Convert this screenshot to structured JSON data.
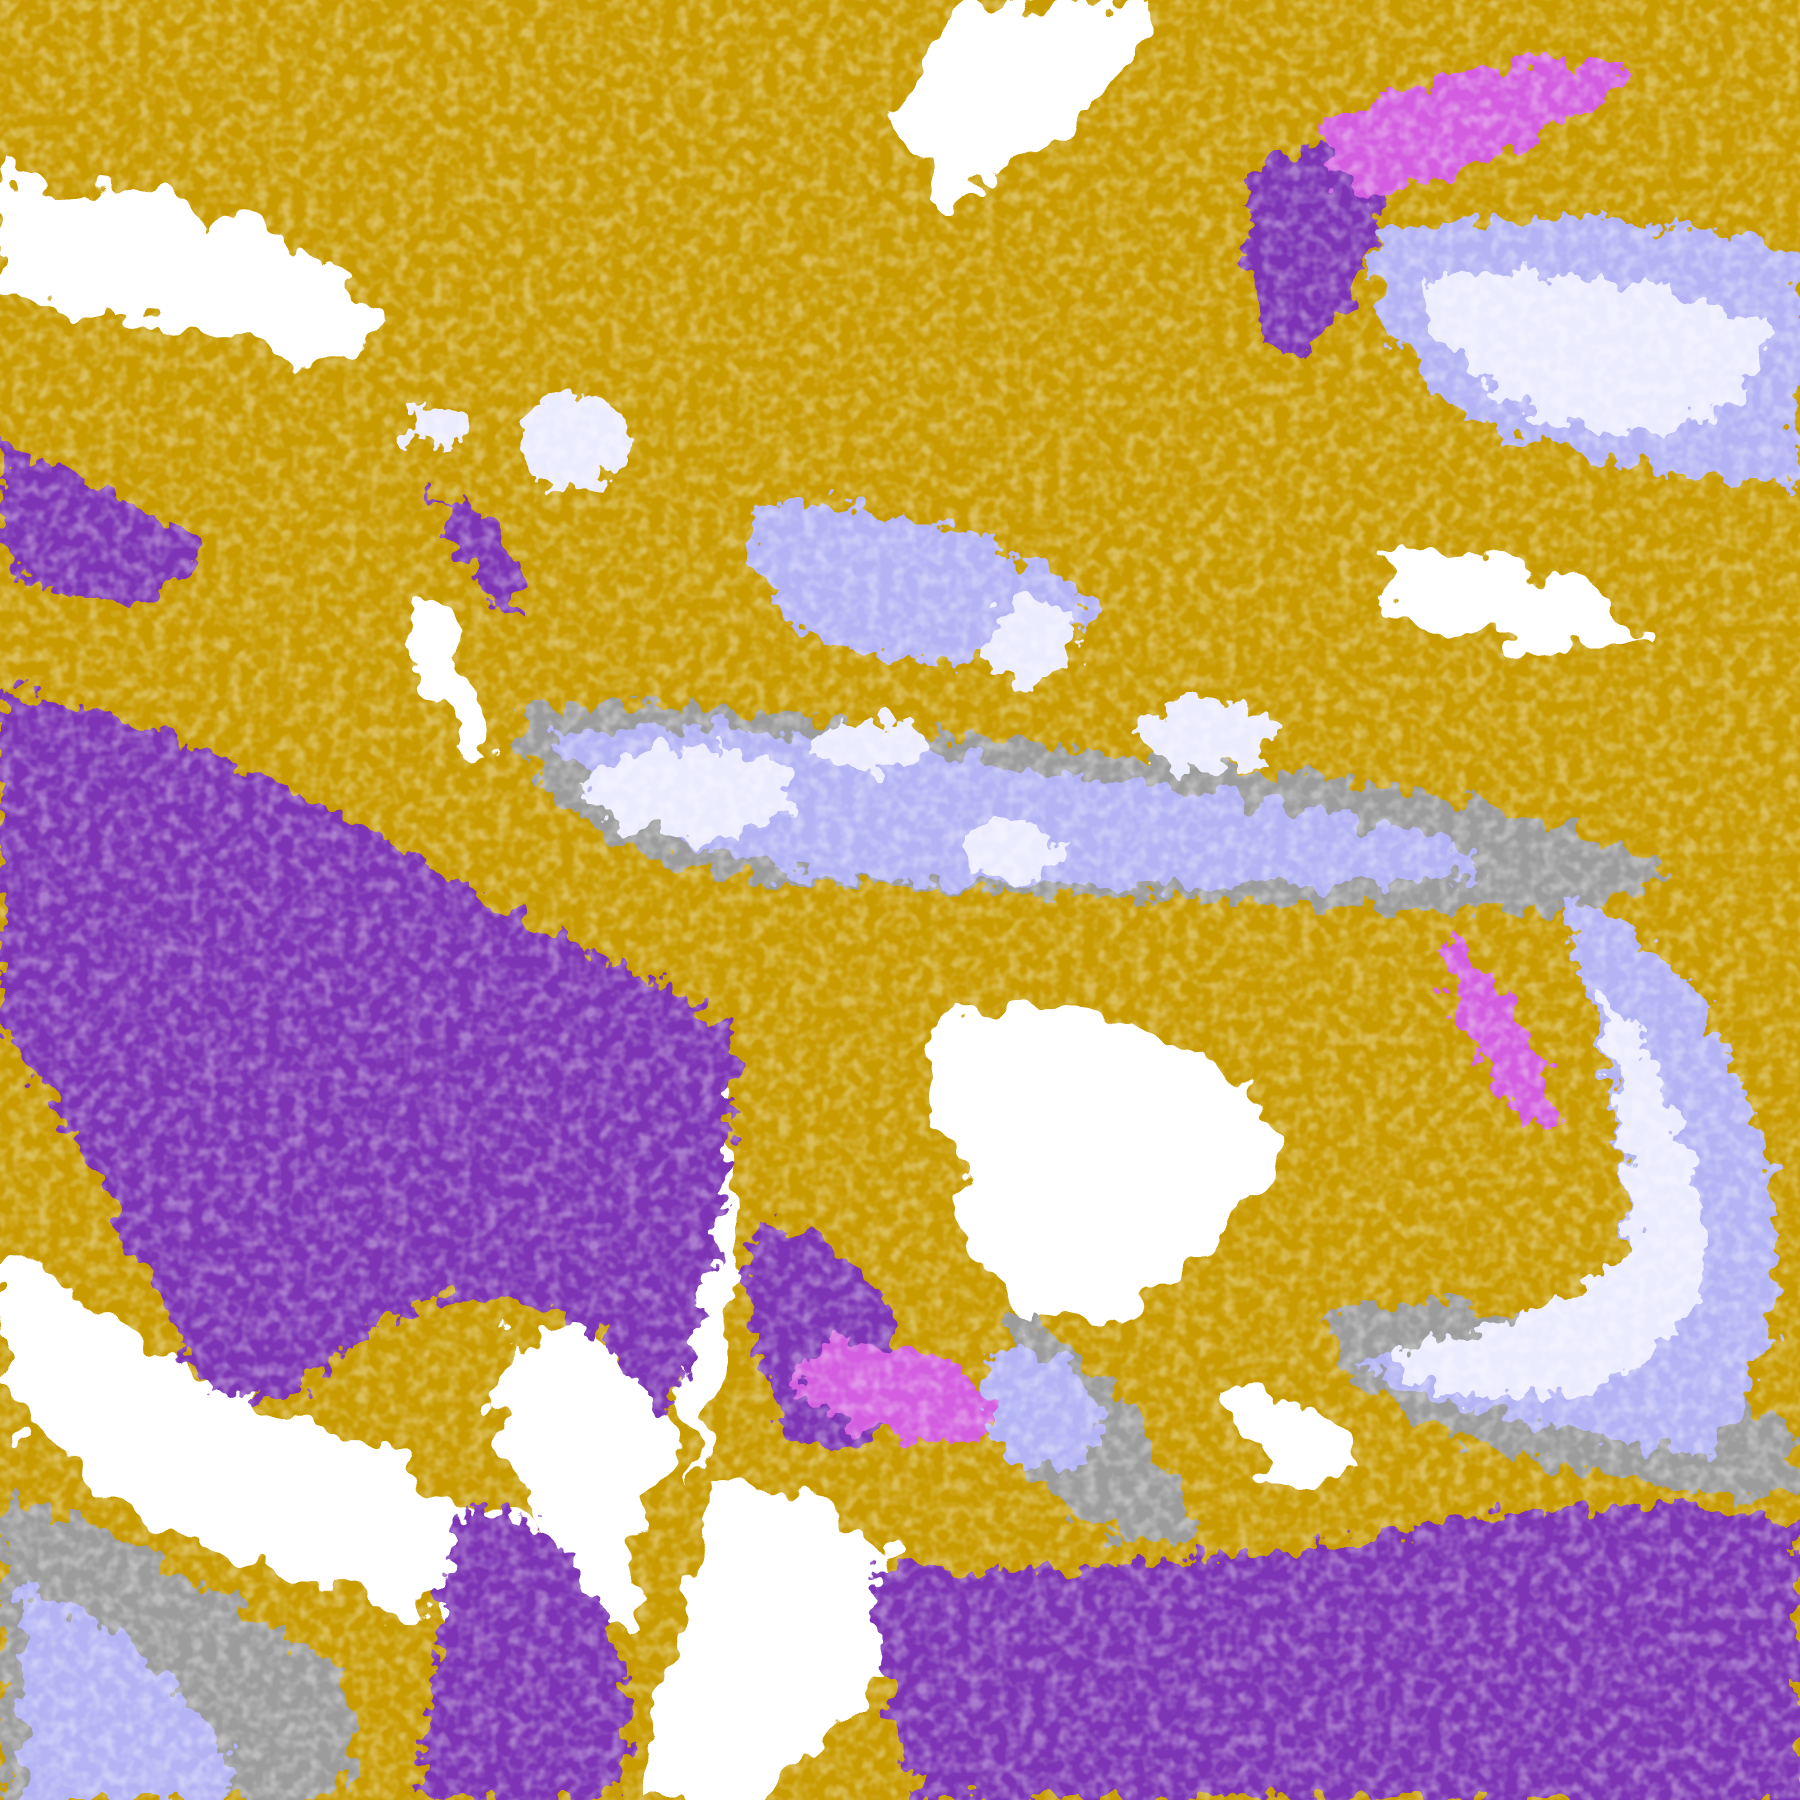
{
  "image": {
    "kind": "false-color satellite cloud classification",
    "palette": {
      "clear": "#ffffff",
      "low_cloud": "#c89b00",
      "ocean_stratus": "#7d35b5",
      "mid_cloud": "#d35ee0",
      "thin_cirrus": "#9c9c9c",
      "high_cloud": "#b4b4f5",
      "deep_convection": "#ececff"
    }
  }
}
